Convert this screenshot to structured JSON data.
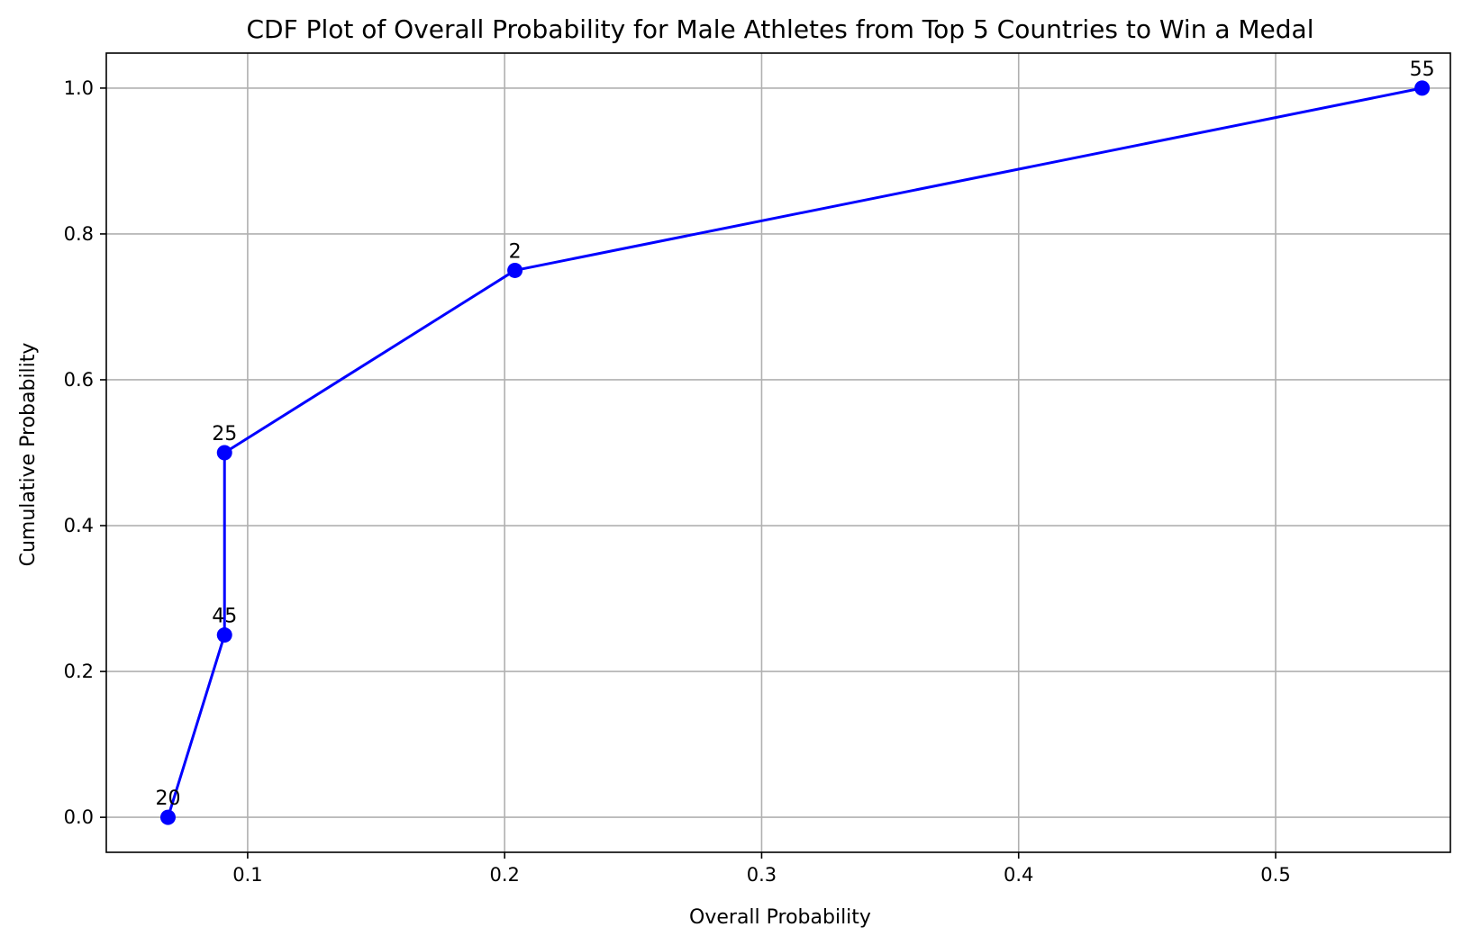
{
  "chart_data": {
    "type": "line",
    "title": "CDF Plot of Overall Probability for Male Athletes from Top 5 Countries to Win a Medal",
    "xlabel": "Overall Probability",
    "ylabel": "Cumulative Probability",
    "xlim": [
      0.045,
      0.568
    ],
    "ylim": [
      -0.048,
      1.048
    ],
    "xticks": [
      0.1,
      0.2,
      0.3,
      0.4,
      0.5
    ],
    "xtick_labels": [
      "0.1",
      "0.2",
      "0.3",
      "0.4",
      "0.5"
    ],
    "yticks": [
      0.0,
      0.2,
      0.4,
      0.6,
      0.8,
      1.0
    ],
    "ytick_labels": [
      "0.0",
      "0.2",
      "0.4",
      "0.6",
      "0.8",
      "1.0"
    ],
    "grid": true,
    "series": [
      {
        "color": "#0000ff",
        "marker": "circle",
        "points": [
          {
            "x": 0.069,
            "y": 0.0,
            "label": "20"
          },
          {
            "x": 0.091,
            "y": 0.25,
            "label": "45"
          },
          {
            "x": 0.091,
            "y": 0.5,
            "label": "25"
          },
          {
            "x": 0.204,
            "y": 0.75,
            "label": "2"
          },
          {
            "x": 0.557,
            "y": 1.0,
            "label": "55"
          }
        ]
      }
    ]
  }
}
